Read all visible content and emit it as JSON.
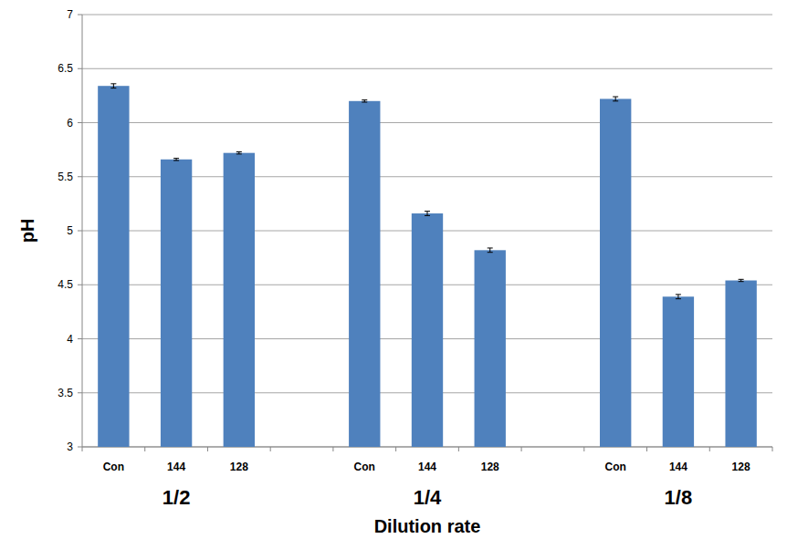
{
  "chart_data": {
    "type": "bar",
    "x_label": "Dilution rate",
    "y_label": "pH",
    "groups": [
      "1/2",
      "1/4",
      "1/8"
    ],
    "categories": [
      "Con",
      "144",
      "128",
      "Con",
      "144",
      "128",
      "Con",
      "144",
      "128"
    ],
    "values": [
      6.34,
      5.66,
      5.72,
      6.2,
      5.16,
      4.82,
      6.22,
      4.39,
      4.54
    ],
    "errors": [
      0.02,
      0.01,
      0.01,
      0.01,
      0.02,
      0.02,
      0.02,
      0.02,
      0.01
    ],
    "color": "#4f81bd",
    "ylim": [
      3,
      7
    ],
    "yticks": [
      3,
      3.5,
      4,
      4.5,
      5,
      5.5,
      6,
      6.5,
      7
    ],
    "grid": true
  }
}
